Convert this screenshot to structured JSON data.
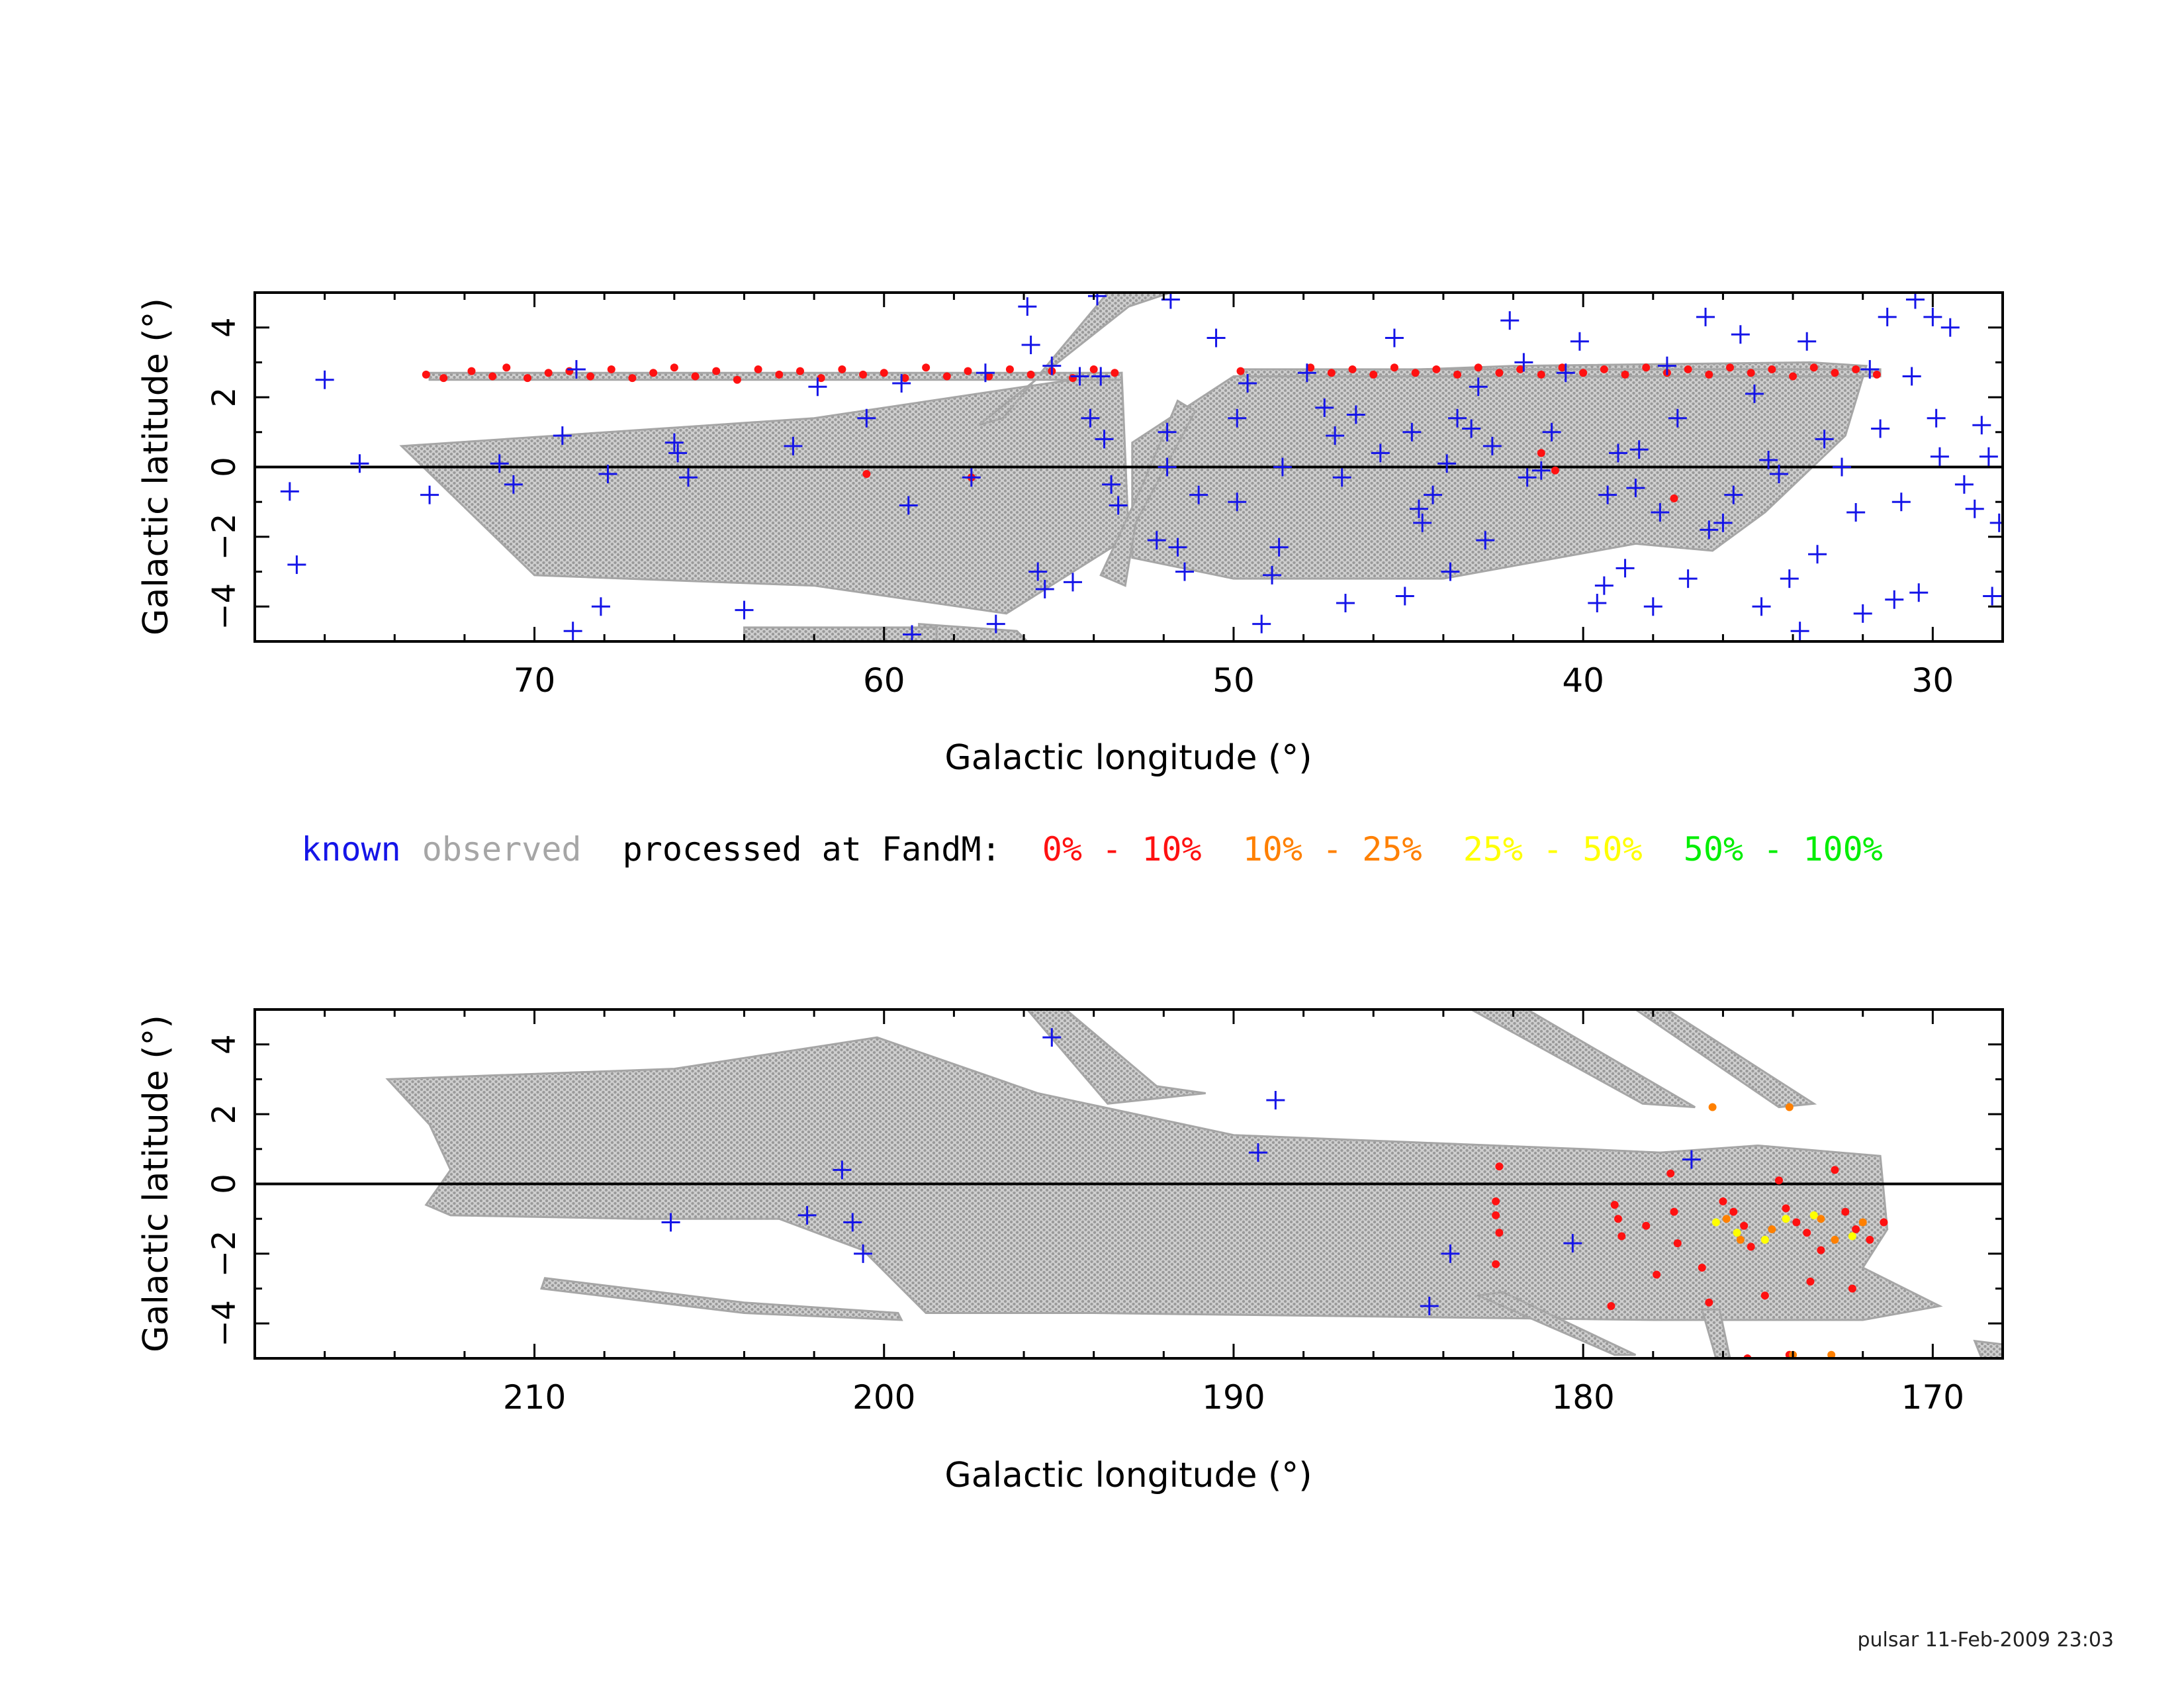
{
  "colors": {
    "known": "#1515e8",
    "observed": "#a6a6a6",
    "processed": "#000000",
    "bin_0_10": "#ff1111",
    "bin_10_25": "#ff8000",
    "bin_25_50": "#ffff00",
    "bin_50_100": "#00ee00"
  },
  "legend": {
    "known": "known",
    "observed": "observed",
    "processed": "processed at FandM:",
    "bin_0_10": "0% - 10%",
    "bin_10_25": "10% - 25%",
    "bin_25_50": "25% - 50%",
    "bin_50_100": "50% - 100%"
  },
  "footer": "pulsar 11-Feb-2009 23:03",
  "chart_data": [
    {
      "type": "scatter",
      "xlabel": "Galactic longitude (°)",
      "ylabel": "Galactic latitude (°)",
      "xlim": [
        78,
        28
      ],
      "ylim": [
        -5,
        5
      ],
      "xticks": [
        "70",
        "60",
        "50",
        "40",
        "30"
      ],
      "yticks": [
        "4",
        "2",
        "0",
        "−2",
        "−4"
      ],
      "series": [
        {
          "name": "known",
          "marker": "plus",
          "points": [
            [
              76,
              2.5
            ],
            [
              77,
              -0.7
            ],
            [
              76.8,
              -2.8
            ],
            [
              75,
              0.1
            ],
            [
              73,
              -0.8
            ],
            [
              71,
              0.1
            ],
            [
              70.6,
              -0.5
            ],
            [
              69.2,
              0.9
            ],
            [
              68.8,
              2.8
            ],
            [
              68.9,
              -4.7
            ],
            [
              68.1,
              -4.0
            ],
            [
              67.9,
              -0.2
            ],
            [
              66,
              0.7
            ],
            [
              65.9,
              0.4
            ],
            [
              65.6,
              -0.3
            ],
            [
              64,
              -4.1
            ],
            [
              62.6,
              0.6
            ],
            [
              61.9,
              2.3
            ],
            [
              60.5,
              1.4
            ],
            [
              59.5,
              2.4
            ],
            [
              59.3,
              -1.1
            ],
            [
              59.2,
              -4.8
            ],
            [
              57.5,
              -0.3
            ],
            [
              57.1,
              2.7
            ],
            [
              56.8,
              -4.5
            ],
            [
              55.9,
              4.6
            ],
            [
              55.8,
              3.5
            ],
            [
              55.6,
              -3.0
            ],
            [
              55.4,
              -3.5
            ],
            [
              55.2,
              2.9
            ],
            [
              54.6,
              -3.3
            ],
            [
              54.4,
              2.6
            ],
            [
              54.1,
              1.4
            ],
            [
              53.9,
              4.9
            ],
            [
              53.8,
              2.6
            ],
            [
              53.7,
              0.8
            ],
            [
              53.5,
              -0.5
            ],
            [
              53.3,
              -1.1
            ],
            [
              52.2,
              -2.1
            ],
            [
              51.9,
              0.0
            ],
            [
              51.9,
              1.0
            ],
            [
              51.8,
              4.8
            ],
            [
              51.6,
              -2.3
            ],
            [
              51.4,
              -3.0
            ],
            [
              51.0,
              -0.8
            ],
            [
              50.5,
              3.7
            ],
            [
              49.6,
              2.4
            ],
            [
              49.9,
              1.4
            ],
            [
              49.9,
              -1.0
            ],
            [
              49.2,
              -4.5
            ],
            [
              48.9,
              -3.1
            ],
            [
              48.7,
              -2.3
            ],
            [
              48.6,
              0.0
            ],
            [
              47.9,
              2.7
            ],
            [
              47.4,
              1.7
            ],
            [
              47.1,
              0.9
            ],
            [
              46.9,
              -0.3
            ],
            [
              46.8,
              -3.9
            ],
            [
              46.5,
              1.5
            ],
            [
              45.8,
              0.4
            ],
            [
              45.4,
              3.7
            ],
            [
              45.1,
              -3.7
            ],
            [
              44.9,
              1.0
            ],
            [
              44.6,
              -1.6
            ],
            [
              44.3,
              -0.8
            ],
            [
              43.9,
              0.1
            ],
            [
              43.8,
              -3.0
            ],
            [
              43.2,
              1.1
            ],
            [
              43.0,
              2.3
            ],
            [
              42.8,
              -2.1
            ],
            [
              42.6,
              0.6
            ],
            [
              42.1,
              4.2
            ],
            [
              41.7,
              3.0
            ],
            [
              41.2,
              -0.1
            ],
            [
              40.9,
              1.0
            ],
            [
              40.5,
              2.7
            ],
            [
              40.1,
              3.6
            ],
            [
              39.6,
              -3.9
            ],
            [
              39.4,
              -3.4
            ],
            [
              39.3,
              -0.8
            ],
            [
              39.0,
              0.4
            ],
            [
              38.8,
              -2.9
            ],
            [
              38.4,
              0.5
            ],
            [
              38.0,
              -4.0
            ],
            [
              37.8,
              -1.3
            ],
            [
              37.6,
              2.9
            ],
            [
              37.3,
              1.4
            ],
            [
              37.0,
              -3.2
            ],
            [
              36.5,
              4.3
            ],
            [
              36.0,
              -1.6
            ],
            [
              35.7,
              -0.8
            ],
            [
              35.5,
              3.8
            ],
            [
              35.1,
              2.1
            ],
            [
              34.9,
              -4.0
            ],
            [
              34.7,
              0.2
            ],
            [
              34.4,
              -0.2
            ],
            [
              34.1,
              -3.2
            ],
            [
              33.8,
              -4.7
            ],
            [
              33.3,
              -2.5
            ],
            [
              33.1,
              0.8
            ],
            [
              32.6,
              0.0
            ],
            [
              32.2,
              -1.3
            ],
            [
              32.0,
              -4.2
            ],
            [
              31.8,
              2.8
            ],
            [
              31.5,
              1.1
            ],
            [
              31.3,
              4.3
            ],
            [
              31.1,
              -3.8
            ],
            [
              30.9,
              -1.0
            ],
            [
              30.5,
              4.8
            ],
            [
              30.4,
              -3.6
            ],
            [
              30.0,
              4.3
            ],
            [
              29.8,
              0.3
            ],
            [
              29.5,
              4.0
            ],
            [
              29.1,
              -0.5
            ],
            [
              28.8,
              -1.2
            ],
            [
              28.6,
              1.2
            ],
            [
              28.4,
              0.3
            ],
            [
              28.3,
              -3.7
            ],
            [
              28.1,
              -1.6
            ],
            [
              29.9,
              1.4
            ],
            [
              30.6,
              2.6
            ],
            [
              33.6,
              3.6
            ],
            [
              36.4,
              -1.8
            ],
            [
              38.5,
              -0.6
            ],
            [
              41.6,
              -0.3
            ],
            [
              43.6,
              1.4
            ],
            [
              44.7,
              -1.2
            ]
          ]
        },
        {
          "name": "processed 0% - 10%",
          "marker": "dot",
          "points": [
            [
              73.1,
              2.65
            ],
            [
              72.6,
              2.55
            ],
            [
              71.8,
              2.75
            ],
            [
              71.2,
              2.6
            ],
            [
              70.8,
              2.85
            ],
            [
              70.2,
              2.55
            ],
            [
              69.6,
              2.7
            ],
            [
              69.0,
              2.75
            ],
            [
              68.4,
              2.6
            ],
            [
              67.8,
              2.8
            ],
            [
              67.2,
              2.55
            ],
            [
              66.6,
              2.7
            ],
            [
              66.0,
              2.85
            ],
            [
              65.4,
              2.6
            ],
            [
              64.8,
              2.75
            ],
            [
              64.2,
              2.5
            ],
            [
              63.6,
              2.8
            ],
            [
              63.0,
              2.65
            ],
            [
              62.4,
              2.75
            ],
            [
              61.8,
              2.55
            ],
            [
              61.2,
              2.8
            ],
            [
              60.6,
              2.65
            ],
            [
              60.0,
              2.7
            ],
            [
              59.4,
              2.55
            ],
            [
              58.8,
              2.85
            ],
            [
              58.2,
              2.6
            ],
            [
              57.6,
              2.75
            ],
            [
              57.0,
              2.6
            ],
            [
              56.4,
              2.8
            ],
            [
              55.8,
              2.65
            ],
            [
              55.2,
              2.75
            ],
            [
              54.6,
              2.55
            ],
            [
              54.0,
              2.8
            ],
            [
              53.4,
              2.7
            ],
            [
              49.8,
              2.75
            ],
            [
              47.8,
              2.85
            ],
            [
              47.2,
              2.7
            ],
            [
              46.6,
              2.8
            ],
            [
              46.0,
              2.65
            ],
            [
              45.4,
              2.85
            ],
            [
              44.8,
              2.7
            ],
            [
              44.2,
              2.8
            ],
            [
              43.6,
              2.65
            ],
            [
              43.0,
              2.85
            ],
            [
              42.4,
              2.7
            ],
            [
              41.8,
              2.8
            ],
            [
              41.2,
              2.65
            ],
            [
              40.6,
              2.85
            ],
            [
              40.0,
              2.7
            ],
            [
              39.4,
              2.8
            ],
            [
              38.8,
              2.65
            ],
            [
              38.2,
              2.85
            ],
            [
              37.6,
              2.7
            ],
            [
              37.0,
              2.8
            ],
            [
              36.4,
              2.65
            ],
            [
              35.8,
              2.85
            ],
            [
              35.2,
              2.7
            ],
            [
              34.6,
              2.8
            ],
            [
              34.0,
              2.6
            ],
            [
              33.4,
              2.85
            ],
            [
              32.8,
              2.7
            ],
            [
              32.2,
              2.8
            ],
            [
              31.6,
              2.65
            ],
            [
              57.5,
              -0.3
            ],
            [
              37.4,
              -0.9
            ],
            [
              41.2,
              0.4
            ],
            [
              40.8,
              -0.1
            ],
            [
              60.5,
              -0.2
            ]
          ]
        }
      ]
    },
    {
      "type": "scatter",
      "xlabel": "Galactic longitude (°)",
      "ylabel": "Galactic latitude (°)",
      "xlim": [
        218,
        168
      ],
      "ylim": [
        -5,
        5
      ],
      "xticks": [
        "210",
        "200",
        "190",
        "180",
        "170"
      ],
      "yticks": [
        "4",
        "2",
        "0",
        "−2",
        "−4"
      ],
      "series": [
        {
          "name": "known",
          "marker": "plus",
          "points": [
            [
              206.1,
              -1.1
            ],
            [
              202.2,
              -0.9
            ],
            [
              201.2,
              0.4
            ],
            [
              200.9,
              -1.1
            ],
            [
              200.6,
              -2.0
            ],
            [
              195.2,
              4.2
            ],
            [
              189.3,
              0.9
            ],
            [
              188.8,
              2.4
            ],
            [
              184.4,
              -3.5
            ],
            [
              183.8,
              -2.0
            ],
            [
              180.3,
              -1.7
            ],
            [
              176.9,
              0.7
            ]
          ]
        },
        {
          "name": "processed 0% - 10%",
          "marker": "dot",
          "points": [
            [
              182.5,
              -0.5
            ],
            [
              182.5,
              -0.9
            ],
            [
              182.4,
              -1.4
            ],
            [
              182.5,
              -2.3
            ],
            [
              182.4,
              0.5
            ],
            [
              179.1,
              -0.6
            ],
            [
              179.0,
              -1.0
            ],
            [
              178.9,
              -1.5
            ],
            [
              179.2,
              -3.5
            ],
            [
              178.2,
              -1.2
            ],
            [
              177.9,
              -2.6
            ],
            [
              177.5,
              0.3
            ],
            [
              177.4,
              -0.8
            ],
            [
              177.3,
              -1.7
            ],
            [
              176.4,
              -3.4
            ],
            [
              176.0,
              -0.5
            ],
            [
              175.7,
              -0.8
            ],
            [
              175.4,
              -1.2
            ],
            [
              175.2,
              -1.8
            ],
            [
              174.8,
              -3.2
            ],
            [
              174.4,
              0.1
            ],
            [
              174.2,
              -0.7
            ],
            [
              173.9,
              -1.1
            ],
            [
              173.6,
              -1.4
            ],
            [
              173.2,
              -1.9
            ],
            [
              172.8,
              0.4
            ],
            [
              172.5,
              -0.8
            ],
            [
              172.2,
              -1.3
            ],
            [
              171.8,
              -1.6
            ],
            [
              171.4,
              -1.1
            ],
            [
              172.3,
              -3.0
            ],
            [
              175.3,
              -5.0
            ],
            [
              174.1,
              -4.9
            ],
            [
              176.6,
              -2.4
            ],
            [
              173.5,
              -2.8
            ]
          ]
        },
        {
          "name": "processed 10% - 25%",
          "marker": "dot",
          "points": [
            [
              176.3,
              2.2
            ],
            [
              174.6,
              -1.3
            ],
            [
              174.1,
              2.2
            ],
            [
              173.2,
              -1.0
            ],
            [
              172.8,
              -1.6
            ],
            [
              175.9,
              -1.0
            ],
            [
              172.0,
              -1.1
            ],
            [
              174.0,
              -4.9
            ],
            [
              172.9,
              -4.9
            ],
            [
              175.5,
              -1.6
            ]
          ]
        },
        {
          "name": "processed 25% - 50%",
          "marker": "dot",
          "points": [
            [
              175.6,
              -1.4
            ],
            [
              174.8,
              -1.6
            ],
            [
              173.4,
              -0.9
            ],
            [
              172.3,
              -1.5
            ],
            [
              176.2,
              -1.1
            ],
            [
              174.2,
              -1.0
            ]
          ]
        }
      ]
    }
  ]
}
